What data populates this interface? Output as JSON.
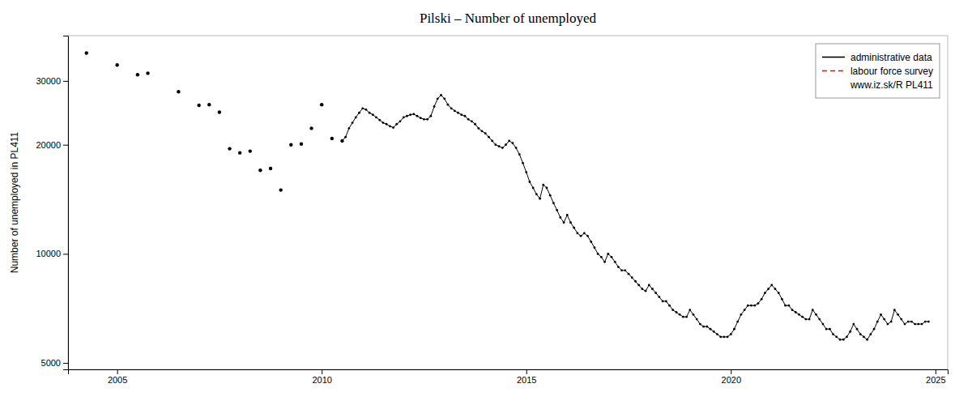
{
  "chart_data": {
    "type": "line",
    "title": "Pilski – Number of unemployed",
    "ylabel": "Number of unemployed in PL411",
    "log": "y",
    "grid": false,
    "legend": "upper right",
    "xlim": [
      2003.8,
      2025.3
    ],
    "ylim": [
      4800,
      40000
    ],
    "xticks": [
      2005,
      2010,
      2015,
      2020,
      2025
    ],
    "yticks": [
      5000,
      10000,
      20000,
      30000
    ],
    "annotations": [
      "www.iz.sk/R PL411"
    ],
    "series": [
      {
        "type": "scatter",
        "color": "#000000",
        "marker": "circle",
        "x": [
          2004.25,
          2005.0,
          2005.5,
          2005.75,
          2006.5,
          2007.0,
          2007.25,
          2007.5,
          2007.75,
          2008.0,
          2008.25,
          2008.5,
          2008.75,
          2009.0,
          2009.25,
          2009.5,
          2009.75,
          2010.0,
          2010.25,
          2010.5
        ],
        "values": [
          35800,
          33200,
          31200,
          31500,
          28000,
          25700,
          25800,
          24600,
          19500,
          19000,
          19200,
          17000,
          17200,
          15000,
          20000,
          20100,
          22200,
          25800,
          20800,
          20500
        ]
      },
      {
        "name": "administrative data",
        "type": "line",
        "color": "#000000",
        "marker": "circle",
        "line_style": "solid",
        "x": [
          2010.5,
          2010.583,
          2010.667,
          2010.75,
          2010.833,
          2010.917,
          2011.0,
          2011.083,
          2011.167,
          2011.25,
          2011.333,
          2011.417,
          2011.5,
          2011.583,
          2011.667,
          2011.75,
          2011.833,
          2011.917,
          2012.0,
          2012.083,
          2012.167,
          2012.25,
          2012.333,
          2012.417,
          2012.5,
          2012.583,
          2012.667,
          2012.75,
          2012.833,
          2012.917,
          2013.0,
          2013.083,
          2013.167,
          2013.25,
          2013.333,
          2013.417,
          2013.5,
          2013.583,
          2013.667,
          2013.75,
          2013.833,
          2013.917,
          2014.0,
          2014.083,
          2014.167,
          2014.25,
          2014.333,
          2014.417,
          2014.5,
          2014.583,
          2014.667,
          2014.75,
          2014.833,
          2014.917,
          2015.0,
          2015.083,
          2015.167,
          2015.25,
          2015.333,
          2015.417,
          2015.5,
          2015.583,
          2015.667,
          2015.75,
          2015.833,
          2015.917,
          2016.0,
          2016.083,
          2016.167,
          2016.25,
          2016.333,
          2016.417,
          2016.5,
          2016.583,
          2016.667,
          2016.75,
          2016.833,
          2016.917,
          2017.0,
          2017.083,
          2017.167,
          2017.25,
          2017.333,
          2017.417,
          2017.5,
          2017.583,
          2017.667,
          2017.75,
          2017.833,
          2017.917,
          2018.0,
          2018.083,
          2018.167,
          2018.25,
          2018.333,
          2018.417,
          2018.5,
          2018.583,
          2018.667,
          2018.75,
          2018.833,
          2018.917,
          2019.0,
          2019.083,
          2019.167,
          2019.25,
          2019.333,
          2019.417,
          2019.5,
          2019.583,
          2019.667,
          2019.75,
          2019.833,
          2019.917,
          2020.0,
          2020.083,
          2020.167,
          2020.25,
          2020.333,
          2020.417,
          2020.5,
          2020.583,
          2020.667,
          2020.75,
          2020.833,
          2020.917,
          2021.0,
          2021.083,
          2021.167,
          2021.25,
          2021.333,
          2021.417,
          2021.5,
          2021.583,
          2021.667,
          2021.75,
          2021.833,
          2021.917,
          2022.0,
          2022.083,
          2022.167,
          2022.25,
          2022.333,
          2022.417,
          2022.5,
          2022.583,
          2022.667,
          2022.75,
          2022.833,
          2022.917,
          2023.0,
          2023.083,
          2023.167,
          2023.25,
          2023.333,
          2023.417,
          2023.5,
          2023.583,
          2023.667,
          2023.75,
          2023.833,
          2023.917,
          2024.0,
          2024.083,
          2024.167,
          2024.25,
          2024.333,
          2024.417,
          2024.5,
          2024.583,
          2024.667,
          2024.75,
          2024.833
        ],
        "values": [
          20500,
          21000,
          22200,
          23000,
          23800,
          24500,
          25200,
          25000,
          24500,
          24200,
          23800,
          23400,
          23000,
          22800,
          22500,
          22300,
          22800,
          23200,
          23800,
          24000,
          24200,
          24300,
          24000,
          23700,
          23500,
          23500,
          24000,
          25500,
          26800,
          27400,
          26800,
          25800,
          25200,
          24800,
          24500,
          24200,
          24000,
          23500,
          23200,
          22800,
          22200,
          21800,
          21500,
          21000,
          20500,
          20000,
          19800,
          19600,
          20000,
          20500,
          20200,
          19600,
          18800,
          17800,
          16800,
          15800,
          15200,
          14600,
          14200,
          15500,
          15200,
          14500,
          13800,
          13200,
          12600,
          12200,
          12800,
          12200,
          11800,
          11400,
          11200,
          11400,
          11200,
          10800,
          10400,
          10000,
          9800,
          9500,
          10000,
          9800,
          9500,
          9200,
          9000,
          9000,
          8800,
          8600,
          8400,
          8200,
          8000,
          7900,
          8200,
          8000,
          7800,
          7600,
          7400,
          7400,
          7200,
          7000,
          6900,
          6800,
          6700,
          6700,
          7000,
          6800,
          6600,
          6400,
          6300,
          6300,
          6200,
          6100,
          6000,
          5900,
          5900,
          5900,
          6000,
          6200,
          6500,
          6800,
          7000,
          7200,
          7200,
          7200,
          7300,
          7500,
          7800,
          8000,
          8200,
          8000,
          7800,
          7500,
          7200,
          7200,
          7000,
          6900,
          6800,
          6700,
          6600,
          6600,
          7000,
          6800,
          6600,
          6400,
          6200,
          6200,
          6000,
          5900,
          5800,
          5800,
          5900,
          6100,
          6400,
          6200,
          6000,
          5900,
          5800,
          6000,
          6200,
          6500,
          6800,
          6600,
          6400,
          6500,
          7000,
          6800,
          6600,
          6400,
          6500,
          6500,
          6400,
          6400,
          6400,
          6500,
          6500
        ]
      },
      {
        "name": "labour force survey",
        "type": "line",
        "color": "#ff0000",
        "line_style": "dashed",
        "x": [],
        "values": []
      }
    ]
  }
}
